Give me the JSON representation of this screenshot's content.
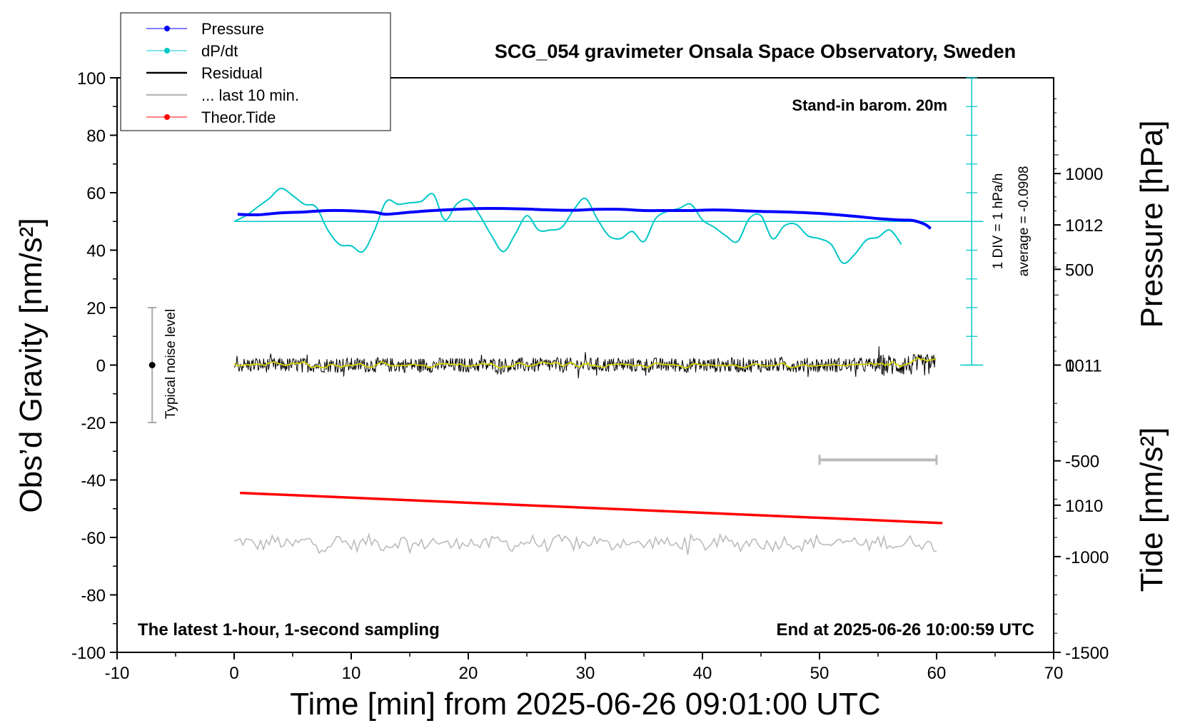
{
  "chart_data": {
    "type": "line",
    "title": "SCG_054 gravimeter Onsala Space Observatory, Sweden",
    "xlabel": "Time [min] from 2025-06-26 09:01:00 UTC",
    "ylabel_left": "Obs’d Gravity [nm/s²]",
    "ylabel_right_top": "Pressure [hPa]",
    "ylabel_right_bottom": "Tide [nm/s²]",
    "xlim": [
      -10,
      70
    ],
    "ylim_left": [
      -100,
      100
    ],
    "xticks": [
      -10,
      0,
      10,
      20,
      30,
      40,
      50,
      60,
      70
    ],
    "yticks_left": [
      -100,
      -80,
      -60,
      -40,
      -20,
      0,
      20,
      40,
      60,
      80,
      100
    ],
    "pressure_axis": {
      "ticks": [
        1010,
        1011,
        1012
      ],
      "range_hPa": [
        1008.95,
        1013.05
      ]
    },
    "tide_axis": {
      "ticks": [
        -1500,
        -1000,
        -500,
        0,
        500,
        1000
      ],
      "range": [
        -1500,
        1500
      ]
    },
    "annotations": {
      "barometer": "Stand-in barom. 20m",
      "div_scale": "1 DIV = 1 hPa/h",
      "average": "average = -0.0908",
      "noise": "Typical noise level",
      "sampling": "The latest 1-hour, 1-second sampling",
      "end_time": "End at 2025-06-26 10:00:59 UTC"
    },
    "legend": {
      "placement": "top-left",
      "entries": [
        {
          "label": "Pressure",
          "color": "#0000ff",
          "marker": true
        },
        {
          "label": "dP/dt",
          "color": "#00c8c8",
          "marker": true
        },
        {
          "label": "Residual",
          "color": "#000000",
          "marker": false
        },
        {
          "label": "... last 10 min.",
          "color": "#bbbbbb",
          "marker": false
        },
        {
          "label": "Theor.Tide",
          "color": "#ff0000",
          "marker": true
        }
      ]
    },
    "series": [
      {
        "name": "Pressure",
        "color": "#0000ff",
        "x": [
          0.3,
          2,
          4,
          6,
          8,
          10,
          12,
          13,
          15,
          17,
          19,
          21,
          23,
          25,
          27,
          29,
          31,
          33,
          35,
          37,
          39,
          41,
          43,
          45,
          47,
          49,
          51,
          53,
          55,
          57,
          58,
          59,
          59.5
        ],
        "y": [
          52.5,
          52.3,
          53.0,
          53.3,
          53.8,
          53.7,
          53.2,
          52.5,
          53.2,
          53.8,
          54.2,
          54.5,
          54.5,
          54.3,
          54.0,
          53.9,
          54.2,
          54.2,
          53.8,
          53.8,
          53.8,
          54.0,
          53.8,
          53.5,
          53.3,
          53.0,
          52.5,
          51.8,
          51.0,
          50.5,
          50.3,
          49.0,
          47.5
        ]
      },
      {
        "name": "dP/dt",
        "color": "#00c8c8",
        "x": [
          0,
          1,
          2,
          3,
          4,
          5,
          6,
          7,
          8,
          9,
          10,
          11,
          12,
          13,
          14,
          15,
          16,
          17,
          18,
          19,
          20,
          21,
          22,
          23,
          24,
          25,
          26,
          27,
          28,
          29,
          30,
          31,
          32,
          33,
          34,
          35,
          36,
          37,
          38,
          39,
          40,
          41,
          42,
          43,
          44,
          45,
          46,
          47,
          48,
          49,
          50,
          51,
          52,
          53,
          54,
          55,
          56,
          57
        ],
        "y": [
          50,
          52,
          55,
          58,
          61.5,
          59,
          56,
          55,
          47,
          42,
          41.5,
          39.5,
          47,
          57,
          56,
          56.5,
          57,
          59.5,
          50.5,
          56,
          57.5,
          52,
          45,
          39.5,
          45.5,
          52,
          47,
          47,
          48,
          54,
          58,
          51,
          45,
          44,
          46.5,
          43,
          51,
          53.5,
          54.5,
          56,
          50.5,
          48,
          45,
          43,
          51,
          52,
          44,
          48.5,
          49,
          45,
          44,
          42,
          35.5,
          38.5,
          43.5,
          44.5,
          47,
          42
        ]
      },
      {
        "name": "Theor.Tide",
        "color": "#ff0000",
        "x": [
          0.5,
          60.5
        ],
        "y": [
          -44.5,
          -55.0
        ]
      },
      {
        "name": "Residual",
        "color": "#000000",
        "x_range": [
          0,
          60
        ],
        "y_band": [
          -4,
          4
        ]
      },
      {
        "name": "... last 10 min.",
        "color": "#bbbbbb",
        "x_range": [
          0,
          60
        ],
        "y_center": -62
      }
    ],
    "noise_bar": {
      "x": -7,
      "y_range": [
        -20,
        20
      ]
    },
    "grey_bar": {
      "x_range": [
        50,
        60
      ],
      "y": -33
    }
  }
}
